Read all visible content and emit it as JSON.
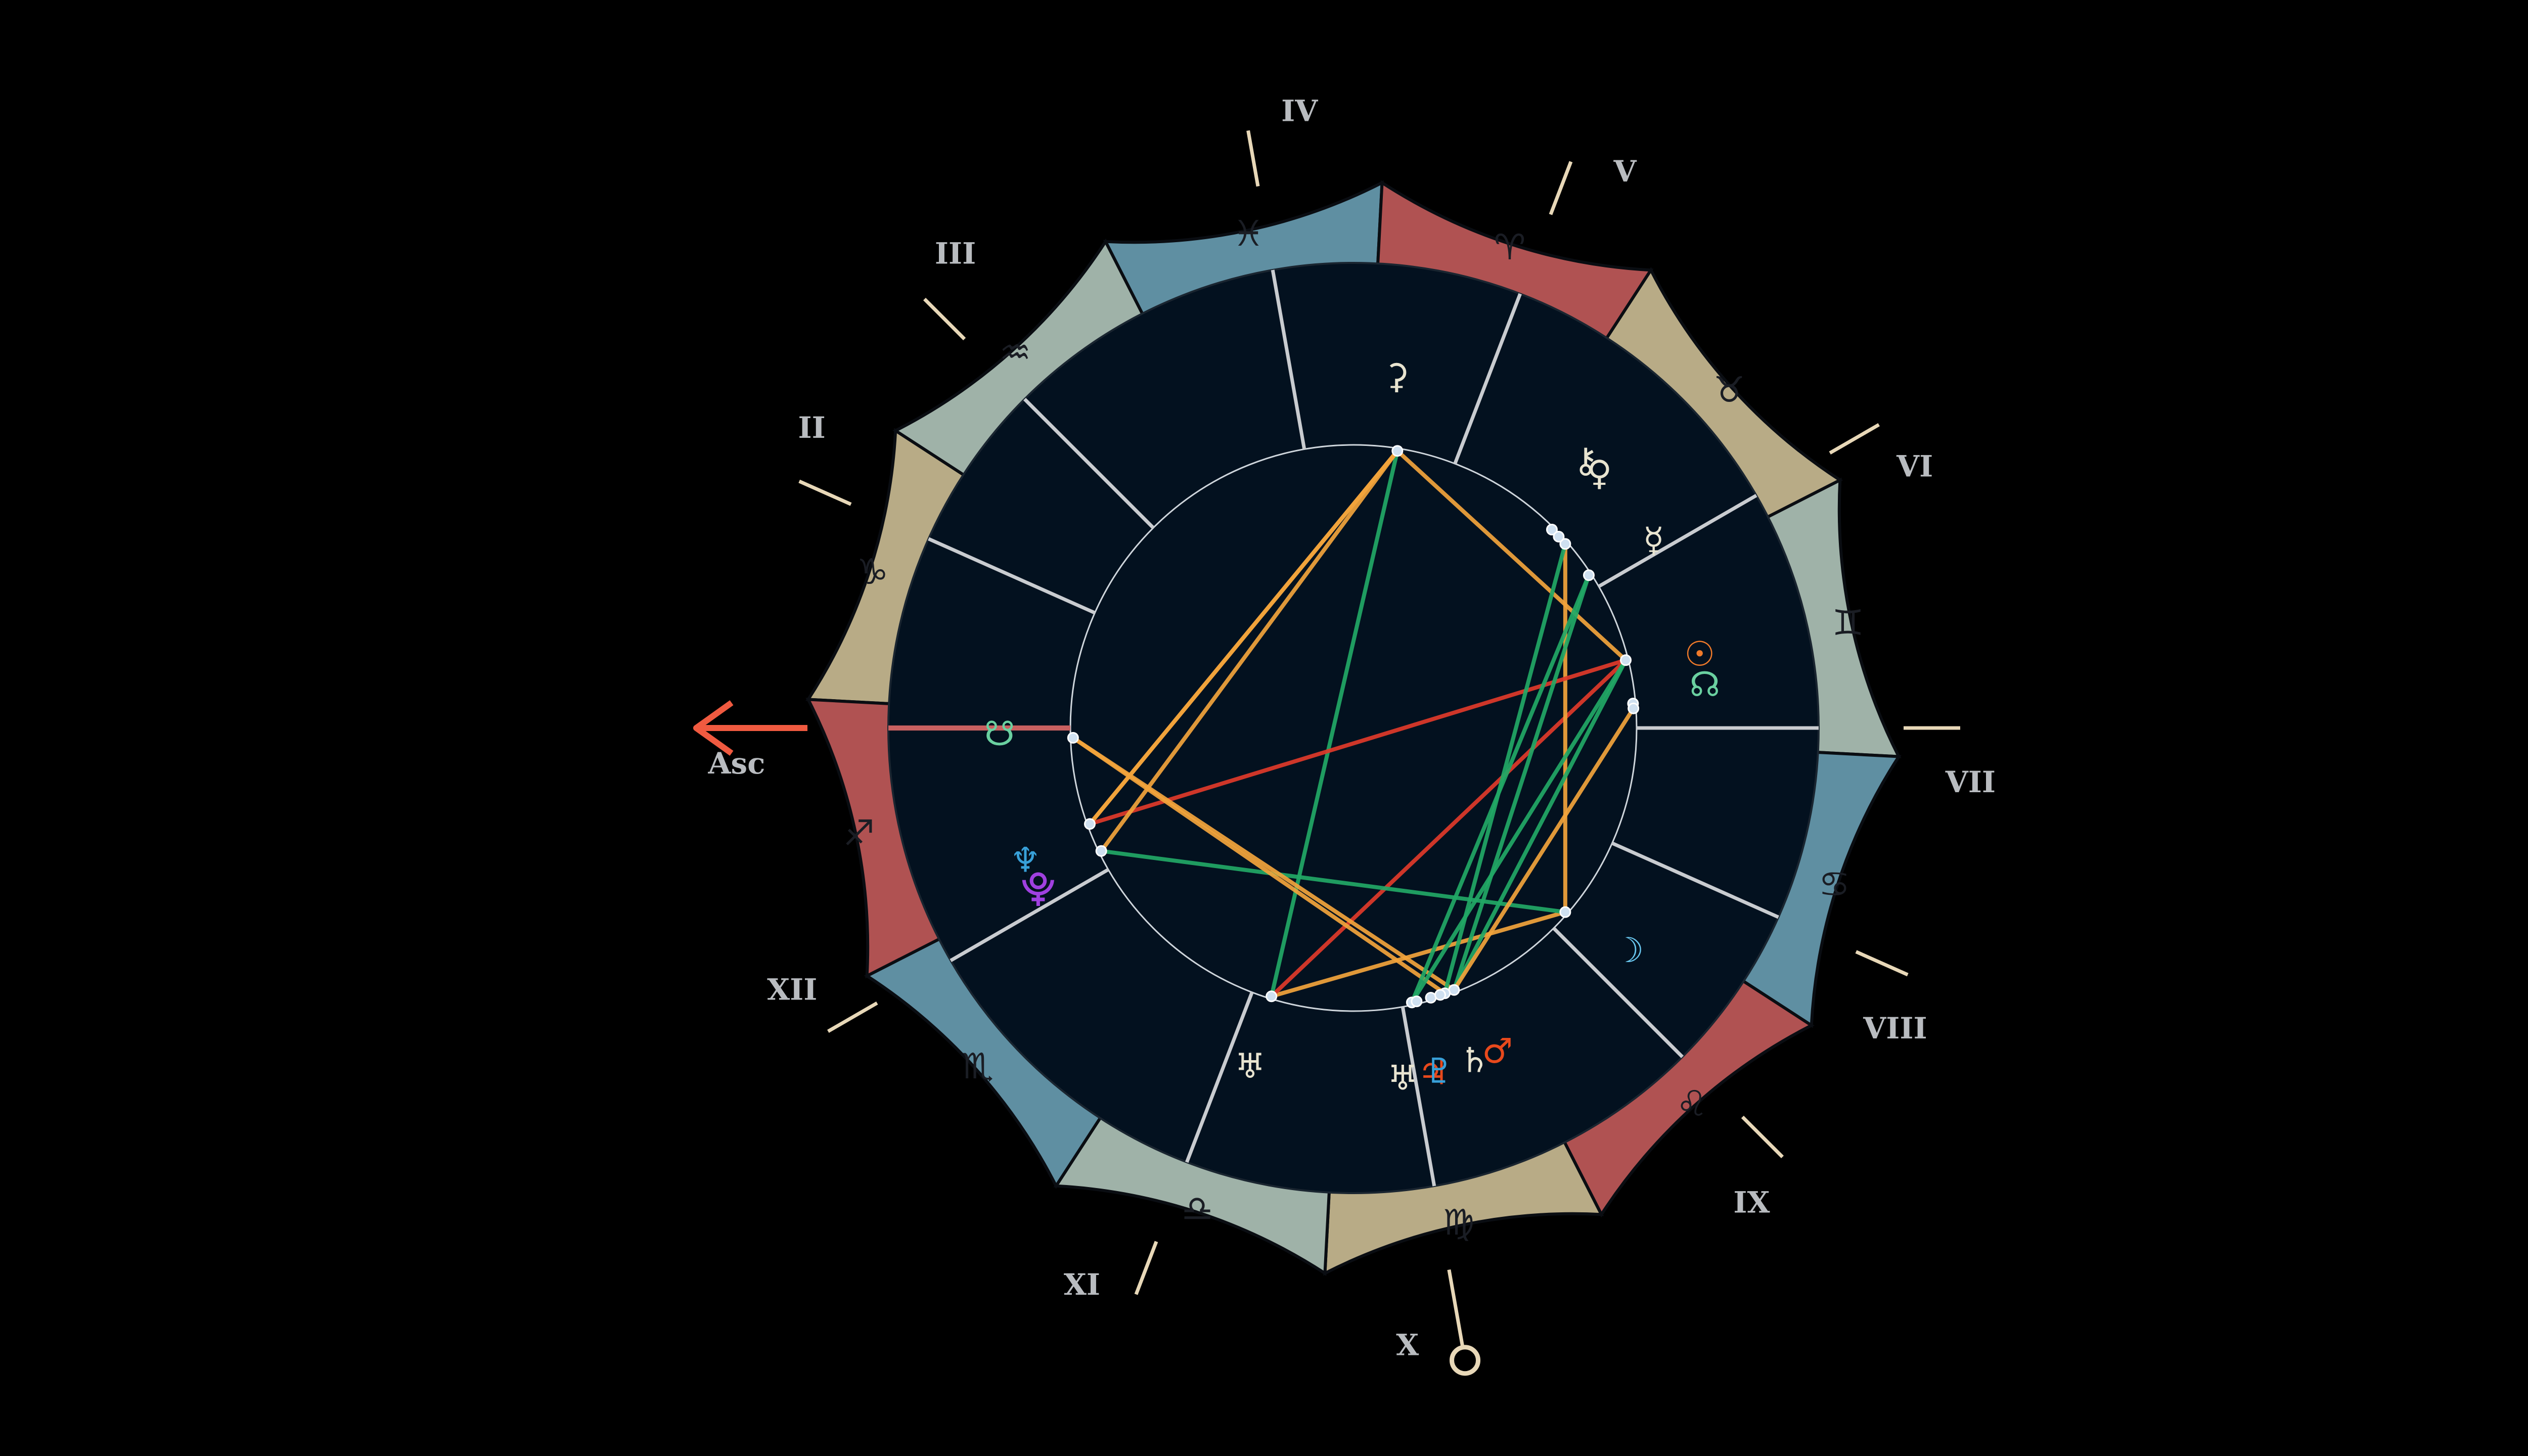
{
  "chart_data": {
    "type": "natal-wheel",
    "ascendant_label": "Asc",
    "colors": {
      "background": "#000000",
      "wheel_inner": "#03111f",
      "fire": "#b05252",
      "earth": "#b8ab86",
      "air": "#9fb2a8",
      "water": "#5f8fa2",
      "cusp": "#c9ccd0",
      "angle_line": "#e8d8b8",
      "asc_arrow": "#f05a40",
      "aspect_trine": "#f2a43c",
      "aspect_sextile": "#22a866",
      "aspect_opposition": "#e03a2a"
    },
    "signs": [
      {
        "name": "capricorn",
        "glyph": "♑",
        "element": "earth"
      },
      {
        "name": "aquarius",
        "glyph": "♒",
        "element": "air"
      },
      {
        "name": "pisces",
        "glyph": "♓",
        "element": "water"
      },
      {
        "name": "aries",
        "glyph": "♈",
        "element": "fire"
      },
      {
        "name": "taurus",
        "glyph": "♉",
        "element": "earth"
      },
      {
        "name": "gemini",
        "glyph": "♊",
        "element": "air"
      },
      {
        "name": "cancer",
        "glyph": "♋",
        "element": "water"
      },
      {
        "name": "leo",
        "glyph": "♌",
        "element": "fire"
      },
      {
        "name": "virgo",
        "glyph": "♍",
        "element": "earth"
      },
      {
        "name": "libra",
        "glyph": "♎",
        "element": "air"
      },
      {
        "name": "scorpio",
        "glyph": "♏",
        "element": "water"
      },
      {
        "name": "sagittarius",
        "glyph": "♐",
        "element": "fire"
      }
    ],
    "sign_offset_deg": 3,
    "houses": [
      {
        "label": "Asc",
        "lon": 0
      },
      {
        "label": "II",
        "lon": 24
      },
      {
        "label": "III",
        "lon": 45
      },
      {
        "label": "IV",
        "lon": 80
      },
      {
        "label": "V",
        "lon": 111
      },
      {
        "label": "VI",
        "lon": 150
      },
      {
        "label": "VII",
        "lon": 180
      },
      {
        "label": "VIII",
        "lon": 204
      },
      {
        "label": "IX",
        "lon": 225
      },
      {
        "label": "X",
        "lon": 260
      },
      {
        "label": "XI",
        "lon": 291
      },
      {
        "label": "XII",
        "lon": 330
      }
    ],
    "planets": [
      {
        "name": "jupiter",
        "glyph": "♃",
        "color": "#e8491c",
        "lon": 258,
        "glyph_lon": 257
      },
      {
        "name": "mars",
        "glyph": "♂",
        "color": "#e8491c",
        "lon": 249,
        "glyph_lon": 246
      },
      {
        "name": "saturn",
        "glyph": "♄",
        "color": "#e8e4d0",
        "lon": 251,
        "glyph_lon": 250
      },
      {
        "name": "pluto",
        "glyph": "♇",
        "color": "#38a0d8",
        "lon": 254,
        "glyph_lon": 256
      },
      {
        "name": "uranus-small",
        "glyph": "♅",
        "color": "#e8e4d0",
        "lon": 257,
        "glyph_lon": 262
      },
      {
        "name": "uranus",
        "glyph": "♅",
        "color": "#e8e4d0",
        "lon": 287,
        "glyph_lon": 287
      },
      {
        "name": "moon",
        "glyph": "☽",
        "color": "#6ac8f0",
        "lon": 221,
        "glyph_lon": 219
      },
      {
        "name": "sun",
        "glyph": "☉",
        "color": "#f07a2a",
        "lon": 166,
        "glyph_lon": 168
      },
      {
        "name": "mercury",
        "glyph": "☿",
        "color": "#e8e4d0",
        "lon": 147,
        "glyph_lon": 148
      },
      {
        "name": "venus",
        "glyph": "♀",
        "color": "#e8e4d0",
        "lon": 139,
        "glyph_lon": 134
      },
      {
        "name": "chiron",
        "glyph": "⚷",
        "color": "#e8e4d0",
        "lon": 135,
        "glyph_lon": 131
      },
      {
        "name": "ceres",
        "glyph": "⚳",
        "color": "#e8e4d0",
        "lon": 99,
        "glyph_lon": 97
      },
      {
        "name": "neptune",
        "glyph": "♆",
        "color": "#38a0d8",
        "lon": 334,
        "glyph_lon": 338
      },
      {
        "name": "pluto-alt",
        "glyph": "⯓",
        "color": "#a040e0",
        "lon": 340,
        "glyph_lon": 333
      },
      {
        "name": "south-node",
        "glyph": "☋",
        "color": "#6ad0a0",
        "lon": 358,
        "glyph_lon": 359
      },
      {
        "name": "north-node",
        "glyph": "☊",
        "color": "#6ad0a0",
        "lon": 175,
        "glyph_lon": 173
      },
      {
        "name": "extra-1",
        "glyph": "",
        "color": "#cfd8e0",
        "lon": 252
      },
      {
        "name": "extra-2",
        "glyph": "",
        "color": "#cfd8e0",
        "lon": 176
      },
      {
        "name": "extra-3",
        "glyph": "",
        "color": "#cfd8e0",
        "lon": 137
      }
    ],
    "aspects": [
      {
        "from": "uranus",
        "to": "moon",
        "kind": "aspect_trine"
      },
      {
        "from": "uranus",
        "to": "sun",
        "kind": "aspect_opposition"
      },
      {
        "from": "uranus",
        "to": "ceres",
        "kind": "aspect_sextile"
      },
      {
        "from": "moon",
        "to": "neptune",
        "kind": "aspect_sextile"
      },
      {
        "from": "moon",
        "to": "venus",
        "kind": "aspect_trine"
      },
      {
        "from": "sun",
        "to": "pluto-alt",
        "kind": "aspect_opposition"
      },
      {
        "from": "sun",
        "to": "ceres",
        "kind": "aspect_trine"
      },
      {
        "from": "sun",
        "to": "mars",
        "kind": "aspect_sextile"
      },
      {
        "from": "ceres",
        "to": "neptune",
        "kind": "aspect_trine"
      },
      {
        "from": "ceres",
        "to": "pluto-alt",
        "kind": "aspect_trine"
      },
      {
        "from": "mars",
        "to": "south-node",
        "kind": "aspect_trine"
      },
      {
        "from": "mars",
        "to": "mercury",
        "kind": "aspect_sextile"
      },
      {
        "from": "mars",
        "to": "extra-2",
        "kind": "aspect_trine"
      },
      {
        "from": "saturn",
        "to": "venus",
        "kind": "aspect_sextile"
      },
      {
        "from": "saturn",
        "to": "south-node",
        "kind": "aspect_trine"
      },
      {
        "from": "jupiter",
        "to": "mercury",
        "kind": "aspect_sextile"
      },
      {
        "from": "jupiter",
        "to": "sun",
        "kind": "aspect_sextile"
      },
      {
        "from": "pluto-alt",
        "to": "ceres",
        "kind": "aspect_trine"
      }
    ]
  }
}
